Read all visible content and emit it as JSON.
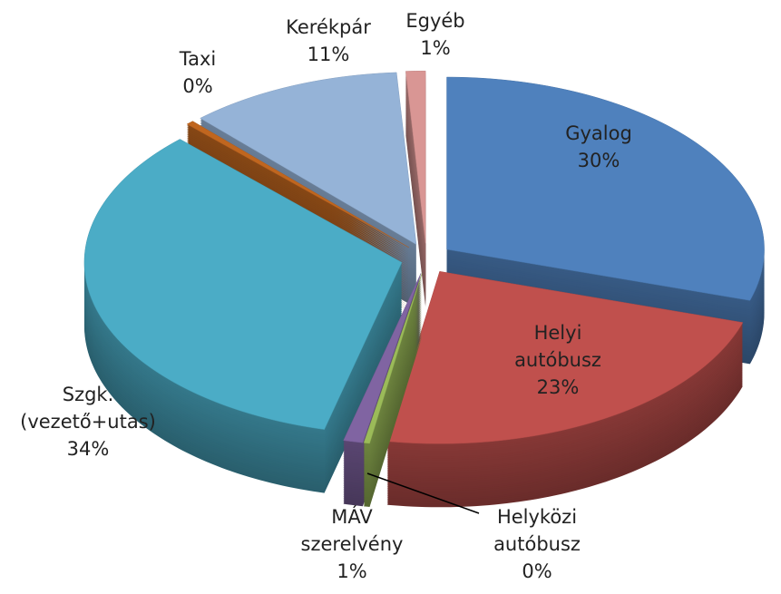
{
  "chart_data": {
    "type": "pie",
    "categories": [
      "Gyalog",
      "Helyi autóbusz",
      "Helyközi autóbusz",
      "MÁV szerelvény",
      "Szgk. (vezető+utas)",
      "Taxi",
      "Kerékpár",
      "Egyéb"
    ],
    "values": [
      30,
      23,
      0.3,
      1,
      34,
      0.4,
      11,
      1
    ],
    "value_labels": [
      "30%",
      "23%",
      "0%",
      "1%",
      "34%",
      "0%",
      "11%",
      "1%"
    ],
    "colors": [
      "#4f81bd",
      "#c0504d",
      "#9bbb59",
      "#8064a2",
      "#4bacc6",
      "#c0661f",
      "#95b3d7",
      "#d99694"
    ]
  }
}
